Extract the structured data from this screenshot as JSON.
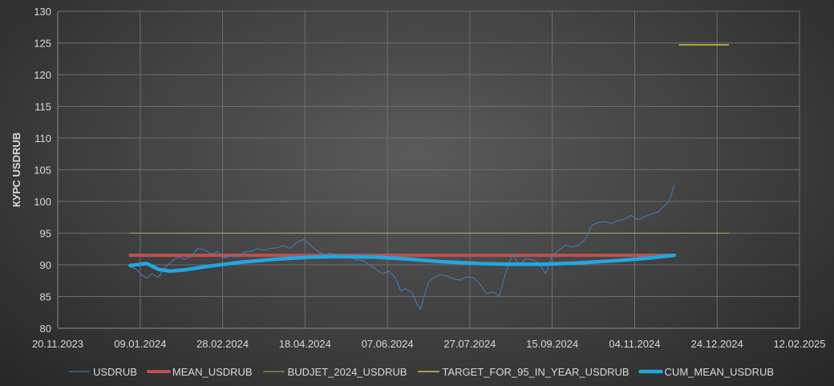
{
  "chart_data": {
    "type": "line",
    "ylabel": "КУРС USDRUB",
    "ylim": [
      80,
      130
    ],
    "yticks": [
      80,
      85,
      90,
      95,
      100,
      105,
      110,
      115,
      120,
      125,
      130
    ],
    "xlim": [
      "2023-11-20",
      "2025-02-12"
    ],
    "xticks": [
      "2023-11-20",
      "2024-01-09",
      "2024-02-28",
      "2024-04-18",
      "2024-06-07",
      "2024-07-27",
      "2024-09-15",
      "2024-11-04",
      "2024-12-24",
      "2025-02-12"
    ],
    "xtick_labels": [
      "20.11.2023",
      "09.01.2024",
      "28.02.2024",
      "18.04.2024",
      "07.06.2024",
      "27.07.2024",
      "15.09.2024",
      "04.11.2024",
      "24.12.2024",
      "12.02.2025"
    ],
    "grid": true,
    "legend_position": "bottom",
    "series": [
      {
        "name": "USDRUB",
        "color": "#4a7ebb",
        "width": 1,
        "x": [
          "2024-01-03",
          "2024-01-06",
          "2024-01-10",
          "2024-01-13",
          "2024-01-16",
          "2024-01-20",
          "2024-01-24",
          "2024-01-28",
          "2024-02-01",
          "2024-02-05",
          "2024-02-09",
          "2024-02-13",
          "2024-02-17",
          "2024-02-21",
          "2024-02-25",
          "2024-02-29",
          "2024-03-04",
          "2024-03-08",
          "2024-03-12",
          "2024-03-16",
          "2024-03-20",
          "2024-03-24",
          "2024-03-28",
          "2024-04-01",
          "2024-04-05",
          "2024-04-09",
          "2024-04-13",
          "2024-04-17",
          "2024-04-21",
          "2024-04-25",
          "2024-04-29",
          "2024-05-03",
          "2024-05-07",
          "2024-05-11",
          "2024-05-15",
          "2024-05-19",
          "2024-05-23",
          "2024-05-27",
          "2024-05-31",
          "2024-06-04",
          "2024-06-08",
          "2024-06-12",
          "2024-06-15",
          "2024-06-18",
          "2024-06-22",
          "2024-06-25",
          "2024-06-27",
          "2024-06-29",
          "2024-07-02",
          "2024-07-05",
          "2024-07-09",
          "2024-07-13",
          "2024-07-17",
          "2024-07-21",
          "2024-07-25",
          "2024-07-29",
          "2024-08-02",
          "2024-08-06",
          "2024-08-10",
          "2024-08-14",
          "2024-08-18",
          "2024-08-22",
          "2024-08-26",
          "2024-08-30",
          "2024-09-03",
          "2024-09-07",
          "2024-09-11",
          "2024-09-15",
          "2024-09-19",
          "2024-09-23",
          "2024-09-27",
          "2024-10-01",
          "2024-10-05",
          "2024-10-09",
          "2024-10-13",
          "2024-10-17",
          "2024-10-21",
          "2024-10-25",
          "2024-10-29",
          "2024-11-02",
          "2024-11-06",
          "2024-11-10",
          "2024-11-14",
          "2024-11-18",
          "2024-11-22",
          "2024-11-25",
          "2024-11-28"
        ],
        "y": [
          89.7,
          89.4,
          88.4,
          87.9,
          88.6,
          88.0,
          89.6,
          90.5,
          91.2,
          90.9,
          91.3,
          92.6,
          92.4,
          91.7,
          92.1,
          91.1,
          91.4,
          91.3,
          92.0,
          92.1,
          92.5,
          92.3,
          92.6,
          92.7,
          93.0,
          92.6,
          93.5,
          94.0,
          93.2,
          92.3,
          91.6,
          91.8,
          91.6,
          91.5,
          91.3,
          90.8,
          90.7,
          90.0,
          89.3,
          88.6,
          89.0,
          87.9,
          85.9,
          86.2,
          85.6,
          83.8,
          83.0,
          84.8,
          87.3,
          88.0,
          88.5,
          88.2,
          87.8,
          87.6,
          88.1,
          88.0,
          87.0,
          85.5,
          85.7,
          85.1,
          89.0,
          91.7,
          89.9,
          91.0,
          90.8,
          90.2,
          88.6,
          91.5,
          92.3,
          93.1,
          92.8,
          93.1,
          94.0,
          96.2,
          96.7,
          96.8,
          96.5,
          97.0,
          97.2,
          97.8,
          97.1,
          97.6,
          98.0,
          98.3,
          99.3,
          100.0,
          102.6
        ]
      },
      {
        "name": "MEAN_USDRUB",
        "color": "#c0504d",
        "width": 4,
        "x": [
          "2024-01-03",
          "2024-11-28"
        ],
        "y": [
          91.5,
          91.5
        ]
      },
      {
        "name": "BUDJET_2024_USDRUB",
        "color": "#9bbb59",
        "width": 1,
        "x": [
          "2024-01-03",
          "2024-12-31"
        ],
        "y": [
          95,
          95
        ]
      },
      {
        "name": "TARGET_FOR_95_IN_YEAR_USDRUB",
        "color": "#f0e040",
        "width": 1.2,
        "x": [
          "2024-12-01",
          "2024-12-31"
        ],
        "y": [
          124.7,
          124.7
        ]
      },
      {
        "name": "CUM_MEAN_USDRUB",
        "color": "#1fa8e0",
        "width": 4.5,
        "x": [
          "2024-01-03",
          "2024-01-13",
          "2024-01-20",
          "2024-01-27",
          "2024-02-05",
          "2024-02-20",
          "2024-03-10",
          "2024-04-01",
          "2024-04-20",
          "2024-05-10",
          "2024-06-01",
          "2024-06-20",
          "2024-07-10",
          "2024-08-01",
          "2024-08-20",
          "2024-09-10",
          "2024-10-01",
          "2024-10-20",
          "2024-11-10",
          "2024-11-28"
        ],
        "y": [
          89.9,
          90.2,
          89.3,
          89.0,
          89.2,
          89.8,
          90.4,
          90.9,
          91.2,
          91.3,
          91.2,
          90.9,
          90.5,
          90.2,
          90.1,
          90.1,
          90.3,
          90.6,
          91.0,
          91.5
        ]
      }
    ]
  }
}
